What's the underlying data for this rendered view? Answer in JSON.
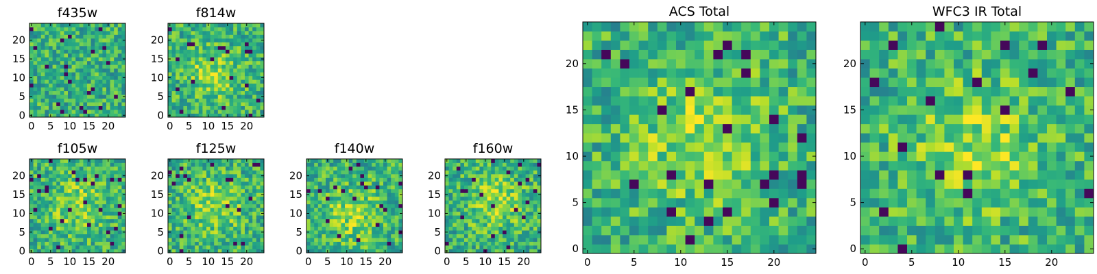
{
  "chart_data": [
    {
      "type": "heatmap",
      "title": "f435w",
      "colormap": "viridis",
      "image_size": [
        25,
        25
      ],
      "xlim": [
        0,
        24
      ],
      "ylim": [
        0,
        24
      ],
      "xticks": [
        0,
        5,
        10,
        15,
        20
      ],
      "yticks": [
        0,
        5,
        10,
        15,
        20
      ],
      "peak_center": null
    },
    {
      "type": "heatmap",
      "title": "f814w",
      "colormap": "viridis",
      "image_size": [
        25,
        25
      ],
      "xlim": [
        0,
        24
      ],
      "ylim": [
        0,
        24
      ],
      "xticks": [
        0,
        5,
        10,
        15,
        20
      ],
      "yticks": [
        0,
        5,
        10,
        15,
        20
      ],
      "peak_center": [
        11,
        11
      ]
    },
    {
      "type": "heatmap",
      "title": "f105w",
      "colormap": "viridis",
      "image_size": [
        25,
        25
      ],
      "xlim": [
        0,
        24
      ],
      "ylim": [
        0,
        24
      ],
      "xticks": [
        0,
        5,
        10,
        15,
        20
      ],
      "yticks": [
        0,
        5,
        10,
        15,
        20
      ],
      "peak_center": [
        12,
        12
      ]
    },
    {
      "type": "heatmap",
      "title": "f125w",
      "colormap": "viridis",
      "image_size": [
        25,
        25
      ],
      "xlim": [
        0,
        24
      ],
      "ylim": [
        0,
        24
      ],
      "xticks": [
        0,
        5,
        10,
        15,
        20
      ],
      "yticks": [
        0,
        5,
        10,
        15,
        20
      ],
      "peak_center": [
        12,
        12
      ]
    },
    {
      "type": "heatmap",
      "title": "f140w",
      "colormap": "viridis",
      "image_size": [
        25,
        25
      ],
      "xlim": [
        0,
        24
      ],
      "ylim": [
        0,
        24
      ],
      "xticks": [
        0,
        5,
        10,
        15,
        20
      ],
      "yticks": [
        0,
        5,
        10,
        15,
        20
      ],
      "peak_center": [
        12,
        10
      ]
    },
    {
      "type": "heatmap",
      "title": "f160w",
      "colormap": "viridis",
      "image_size": [
        25,
        25
      ],
      "xlim": [
        0,
        24
      ],
      "ylim": [
        0,
        24
      ],
      "xticks": [
        0,
        5,
        10,
        15,
        20
      ],
      "yticks": [
        0,
        5,
        10,
        15,
        20
      ],
      "peak_center": [
        13,
        13
      ]
    },
    {
      "type": "heatmap",
      "title": "ACS Total",
      "colormap": "viridis",
      "image_size": [
        25,
        25
      ],
      "xlim": [
        0,
        24
      ],
      "ylim": [
        0,
        24
      ],
      "xticks": [
        0,
        5,
        10,
        15,
        20
      ],
      "yticks": [
        0,
        5,
        10,
        15,
        20
      ],
      "peak_center": [
        12,
        12
      ]
    },
    {
      "type": "heatmap",
      "title": "WFC3 IR Total",
      "colormap": "viridis",
      "image_size": [
        25,
        25
      ],
      "xlim": [
        0,
        24
      ],
      "ylim": [
        0,
        24
      ],
      "xticks": [
        0,
        5,
        10,
        15,
        20
      ],
      "yticks": [
        0,
        5,
        10,
        15,
        20
      ],
      "peak_center": [
        12,
        11
      ]
    }
  ]
}
